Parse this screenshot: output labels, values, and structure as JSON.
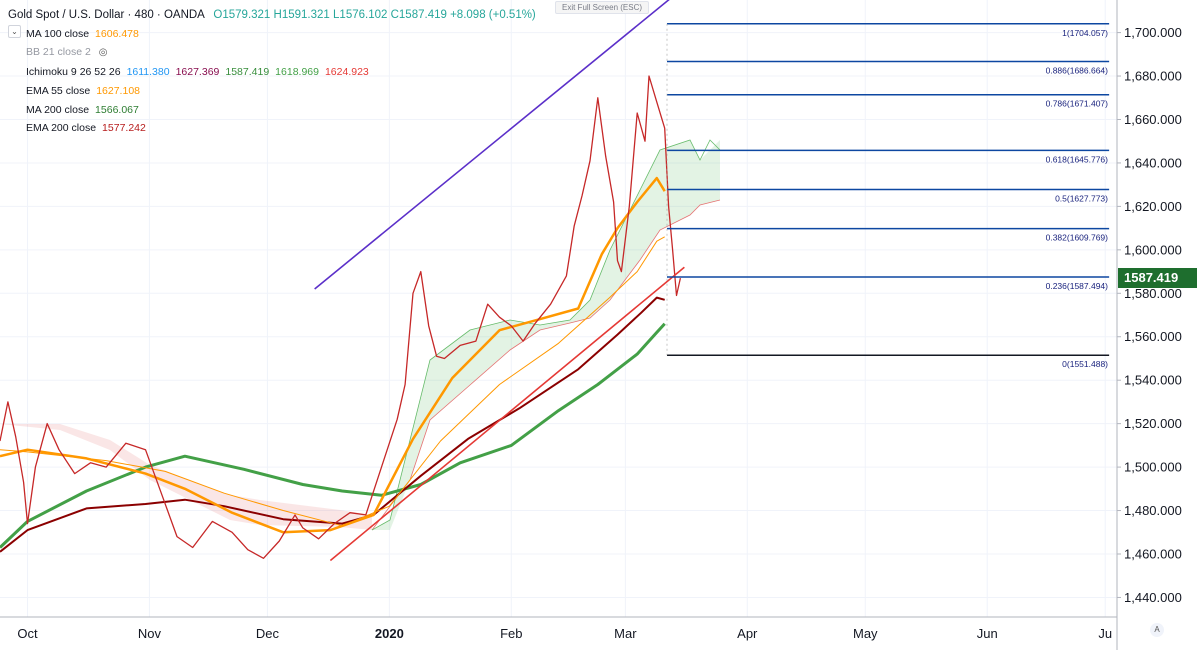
{
  "header": {
    "symbol": "Gold Spot / U.S. Dollar · 480 · OANDA",
    "open": "O1579.321",
    "high": "H1591.321",
    "low": "L1576.102",
    "close": "C1587.419",
    "change": "+8.098 (+0.51%)",
    "exit_fullscreen": "Exit Full Screen (ESC)",
    "auto_label": "A"
  },
  "legend": [
    {
      "label": "MA 100 close",
      "values": [
        "1606.478"
      ],
      "colors": [
        "#ff9800"
      ]
    },
    {
      "label": "BB 21 close 2",
      "values": [],
      "colors": [],
      "icon": "hidden-eye-icon"
    },
    {
      "label": "Ichimoku 9 26 52 26",
      "values": [
        "1611.380",
        "1627.369",
        "1587.419",
        "1618.969",
        "1624.923"
      ],
      "colors": [
        "#2196f3",
        "#880e4f",
        "#388e3c",
        "#43a047",
        "#e53935"
      ]
    },
    {
      "label": "EMA 55 close",
      "values": [
        "1627.108"
      ],
      "colors": [
        "#ff9800"
      ]
    },
    {
      "label": "MA 200 close",
      "values": [
        "1566.067"
      ],
      "colors": [
        "#2e7d32"
      ]
    },
    {
      "label": "EMA 200 close",
      "values": [
        "1577.242"
      ],
      "colors": [
        "#b71c1c"
      ]
    }
  ],
  "last_price": "1587.419",
  "chart_data": {
    "type": "line",
    "y_ticks": [
      "1,440.000",
      "1,460.000",
      "1,480.000",
      "1,500.000",
      "1,520.000",
      "1,540.000",
      "1,560.000",
      "1,580.000",
      "1,600.000",
      "1,620.000",
      "1,640.000",
      "1,660.000",
      "1,680.000",
      "1,700.000"
    ],
    "y_tick_values": [
      1440,
      1460,
      1480,
      1500,
      1520,
      1540,
      1560,
      1580,
      1600,
      1620,
      1640,
      1660,
      1680,
      1700
    ],
    "ylim": [
      1431,
      1715
    ],
    "x_ticks": [
      "Oct",
      "Nov",
      "Dec",
      "2020",
      "Feb",
      "Mar",
      "Apr",
      "May",
      "Jun",
      "Ju"
    ],
    "x_tick_days": [
      0,
      31,
      61,
      92,
      123,
      152,
      183,
      213,
      244,
      274
    ],
    "xlim_days": [
      -7,
      277
    ],
    "fib_levels": [
      {
        "label": "1(1704.057)",
        "value": 1704.057
      },
      {
        "label": "0.886(1686.664)",
        "value": 1686.664
      },
      {
        "label": "0.786(1671.407)",
        "value": 1671.407
      },
      {
        "label": "0.618(1645.776)",
        "value": 1645.776
      },
      {
        "label": "0.5(1627.773)",
        "value": 1627.773
      },
      {
        "label": "0.382(1609.769)",
        "value": 1609.769
      },
      {
        "label": "0.236(1587.494)",
        "value": 1587.494
      },
      {
        "label": "0(1551.488)",
        "value": 1551.488
      }
    ],
    "fib_range_days": [
      159,
      275
    ],
    "trendlines": [
      {
        "name": "upper-channel",
        "color": "#5b2fc9",
        "points": [
          [
            73,
            1582
          ],
          [
            165,
            1718
          ]
        ]
      },
      {
        "name": "rising-support",
        "color": "#e53935",
        "points": [
          [
            77,
            1457
          ],
          [
            167,
            1592
          ]
        ]
      }
    ],
    "series": [
      {
        "name": "MA 200",
        "color": "#43a047",
        "points": [
          [
            -7,
            1463
          ],
          [
            0,
            1475
          ],
          [
            15,
            1489
          ],
          [
            30,
            1500
          ],
          [
            40,
            1505
          ],
          [
            55,
            1499
          ],
          [
            70,
            1492
          ],
          [
            80,
            1489
          ],
          [
            90,
            1487
          ],
          [
            100,
            1492
          ],
          [
            110,
            1502
          ],
          [
            123,
            1510
          ],
          [
            135,
            1526
          ],
          [
            145,
            1538
          ],
          [
            155,
            1552
          ],
          [
            160,
            1562
          ],
          [
            162,
            1566
          ]
        ]
      },
      {
        "name": "EMA 200",
        "color": "#8b0000",
        "points": [
          [
            -7,
            1461
          ],
          [
            0,
            1471
          ],
          [
            15,
            1481
          ],
          [
            30,
            1483
          ],
          [
            40,
            1485
          ],
          [
            50,
            1482
          ],
          [
            65,
            1476
          ],
          [
            80,
            1474
          ],
          [
            88,
            1478
          ],
          [
            100,
            1496
          ],
          [
            112,
            1513
          ],
          [
            125,
            1527
          ],
          [
            140,
            1545
          ],
          [
            150,
            1561
          ],
          [
            156,
            1571
          ],
          [
            160,
            1578
          ],
          [
            162,
            1577
          ]
        ]
      },
      {
        "name": "EMA 55",
        "color": "#ff9800",
        "points": [
          [
            -7,
            1505
          ],
          [
            0,
            1508
          ],
          [
            15,
            1504
          ],
          [
            30,
            1497
          ],
          [
            40,
            1490
          ],
          [
            52,
            1479
          ],
          [
            65,
            1470
          ],
          [
            77,
            1471
          ],
          [
            88,
            1478
          ],
          [
            98,
            1513
          ],
          [
            108,
            1541
          ],
          [
            120,
            1563
          ],
          [
            130,
            1568
          ],
          [
            140,
            1573
          ],
          [
            146,
            1598
          ],
          [
            150,
            1610
          ],
          [
            155,
            1622
          ],
          [
            160,
            1633
          ],
          [
            162,
            1627
          ]
        ]
      },
      {
        "name": "MA 100",
        "color": "#ff9800",
        "points": [
          [
            -7,
            1508
          ],
          [
            0,
            1507
          ],
          [
            20,
            1503
          ],
          [
            35,
            1498
          ],
          [
            50,
            1488
          ],
          [
            65,
            1480
          ],
          [
            80,
            1473
          ],
          [
            92,
            1482
          ],
          [
            105,
            1512
          ],
          [
            120,
            1538
          ],
          [
            135,
            1557
          ],
          [
            148,
            1578
          ],
          [
            155,
            1590
          ],
          [
            160,
            1604
          ],
          [
            162,
            1606
          ]
        ]
      },
      {
        "name": "Price",
        "color": "#c62828",
        "points": [
          [
            -7,
            1512
          ],
          [
            -5,
            1530
          ],
          [
            -3,
            1514
          ],
          [
            -1,
            1493
          ],
          [
            0,
            1474
          ],
          [
            2,
            1500
          ],
          [
            5,
            1520
          ],
          [
            8,
            1508
          ],
          [
            12,
            1497
          ],
          [
            16,
            1502
          ],
          [
            20,
            1500
          ],
          [
            25,
            1511
          ],
          [
            30,
            1508
          ],
          [
            34,
            1488
          ],
          [
            38,
            1468
          ],
          [
            42,
            1463
          ],
          [
            47,
            1475
          ],
          [
            52,
            1470
          ],
          [
            56,
            1462
          ],
          [
            60,
            1458
          ],
          [
            64,
            1466
          ],
          [
            68,
            1478
          ],
          [
            70,
            1472
          ],
          [
            74,
            1467
          ],
          [
            78,
            1474
          ],
          [
            82,
            1479
          ],
          [
            86,
            1478
          ],
          [
            90,
            1500
          ],
          [
            94,
            1522
          ],
          [
            96,
            1538
          ],
          [
            98,
            1580
          ],
          [
            100,
            1590
          ],
          [
            102,
            1565
          ],
          [
            104,
            1551
          ],
          [
            106,
            1550
          ],
          [
            110,
            1556
          ],
          [
            114,
            1558
          ],
          [
            117,
            1575
          ],
          [
            120,
            1569
          ],
          [
            123,
            1565
          ],
          [
            126,
            1558
          ],
          [
            129,
            1566
          ],
          [
            133,
            1575
          ],
          [
            137,
            1588
          ],
          [
            139,
            1611
          ],
          [
            141,
            1625
          ],
          [
            143,
            1641
          ],
          [
            145,
            1670
          ],
          [
            147,
            1643
          ],
          [
            149,
            1622
          ],
          [
            150,
            1595
          ],
          [
            151,
            1590
          ],
          [
            153,
            1620
          ],
          [
            155,
            1663
          ],
          [
            157,
            1650
          ],
          [
            158,
            1680
          ],
          [
            160,
            1668
          ],
          [
            162,
            1656
          ],
          [
            163,
            1620
          ],
          [
            164,
            1600
          ],
          [
            165,
            1579
          ],
          [
            166,
            1587
          ]
        ]
      }
    ]
  }
}
